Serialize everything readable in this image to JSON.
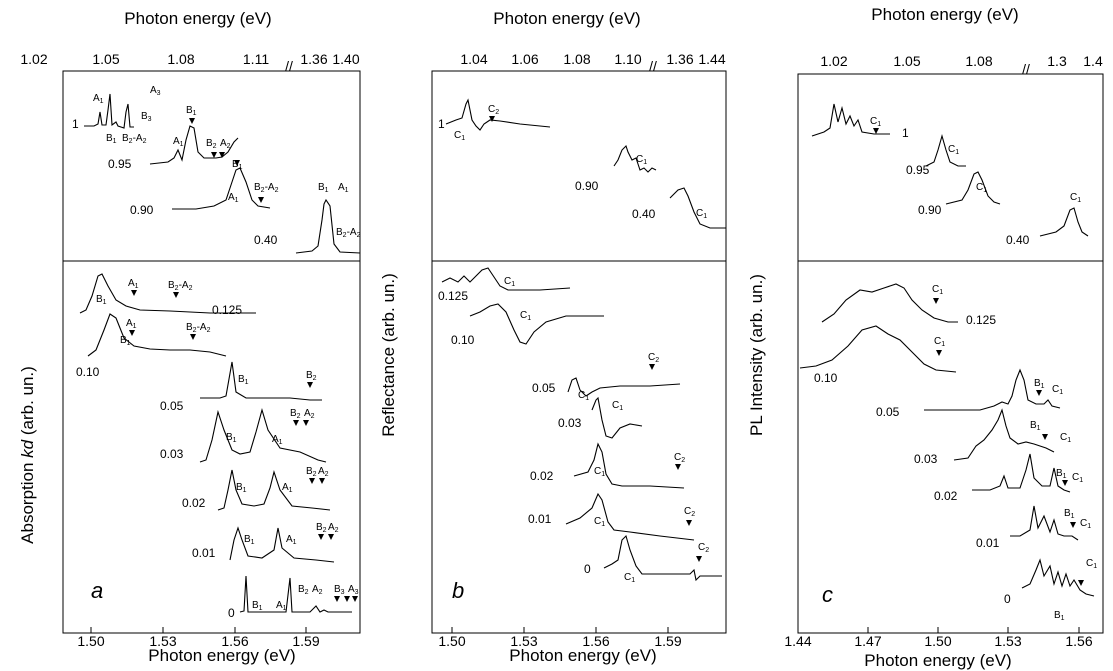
{
  "panels": {
    "a": {
      "letter": "a",
      "ylabel": "Absorption ",
      "ylabel_italic": "kd",
      "ylabel_suffix": " (arb. un.)",
      "xlabel_bottom": "Photon energy (eV)",
      "xlabel_top": "Photon energy (eV)",
      "bottom_ticks": [
        "1.50",
        "1.53",
        "1.56",
        "1.59"
      ],
      "top_ticks": [
        "1.02",
        "1.05",
        "1.08",
        "1.11",
        "1.36",
        "1.40"
      ]
    },
    "b": {
      "letter": "b",
      "ylabel": "Reflectance (arb. un.)",
      "xlabel_bottom": "Photon energy (eV)",
      "xlabel_top": "Photon energy (eV)",
      "bottom_ticks": [
        "1.50",
        "1.53",
        "1.56",
        "1.59"
      ],
      "top_ticks": [
        "1.04",
        "1.06",
        "1.08",
        "1.10",
        "1.36",
        "1.44"
      ]
    },
    "c": {
      "letter": "c",
      "ylabel": "PL Intensity (arb. un.)",
      "xlabel_bottom": "Photon energy (eV)",
      "xlabel_top": "Photon energy (eV)",
      "bottom_ticks": [
        "1.44",
        "1.47",
        "1.50",
        "1.53",
        "1.56"
      ],
      "top_ticks": [
        "1.02",
        "1.05",
        "1.08",
        "1.3",
        "1.4"
      ]
    }
  },
  "chart_data": [
    {
      "type": "line",
      "panel": "a",
      "xlabel": "Photon energy (eV)",
      "ylabel": "Absorption kd (arb. un.)",
      "top_axis": {
        "label": "Photon energy (eV)",
        "ticks": [
          1.02,
          1.05,
          1.08,
          1.11,
          1.36,
          1.4
        ],
        "broken": true
      },
      "bottom_axis": {
        "ticks": [
          1.5,
          1.53,
          1.56,
          1.59
        ],
        "range": [
          1.48,
          1.61
        ]
      },
      "series_labels_top": [
        "1",
        "0.95",
        "0.90",
        "0.40"
      ],
      "series_labels_bottom": [
        "0.125",
        "0.10",
        "0.05",
        "0.03",
        "0.02",
        "0.01",
        "0"
      ],
      "annotations": [
        "A1",
        "A3",
        "B1",
        "B2-A2",
        "B3",
        "B2",
        "A2"
      ]
    },
    {
      "type": "line",
      "panel": "b",
      "xlabel": "Photon energy (eV)",
      "ylabel": "Reflectance (arb. un.)",
      "top_axis": {
        "label": "Photon energy (eV)",
        "ticks": [
          1.04,
          1.06,
          1.08,
          1.1,
          1.36,
          1.44
        ],
        "broken": true
      },
      "bottom_axis": {
        "ticks": [
          1.5,
          1.53,
          1.56,
          1.59
        ],
        "range": [
          1.48,
          1.61
        ]
      },
      "series_labels_top": [
        "1",
        "0.90",
        "0.40"
      ],
      "series_labels_bottom": [
        "0.125",
        "0.10",
        "0.05",
        "0.03",
        "0.02",
        "0.01",
        "0"
      ],
      "annotations": [
        "C1",
        "C2"
      ]
    },
    {
      "type": "line",
      "panel": "c",
      "xlabel": "Photon energy (eV)",
      "ylabel": "PL Intensity (arb. un.)",
      "top_axis": {
        "label": "Photon energy (eV)",
        "ticks": [
          1.02,
          1.05,
          1.08,
          1.3,
          1.4
        ],
        "broken": true
      },
      "bottom_axis": {
        "ticks": [
          1.44,
          1.47,
          1.5,
          1.53,
          1.56
        ],
        "range": [
          1.44,
          1.57
        ]
      },
      "series_labels_top": [
        "1",
        "0.95",
        "0.90",
        "0.40"
      ],
      "series_labels_bottom": [
        "0.125",
        "0.10",
        "0.05",
        "0.03",
        "0.02",
        "0.01",
        "0"
      ],
      "annotations": [
        "C1",
        "B1"
      ]
    }
  ]
}
